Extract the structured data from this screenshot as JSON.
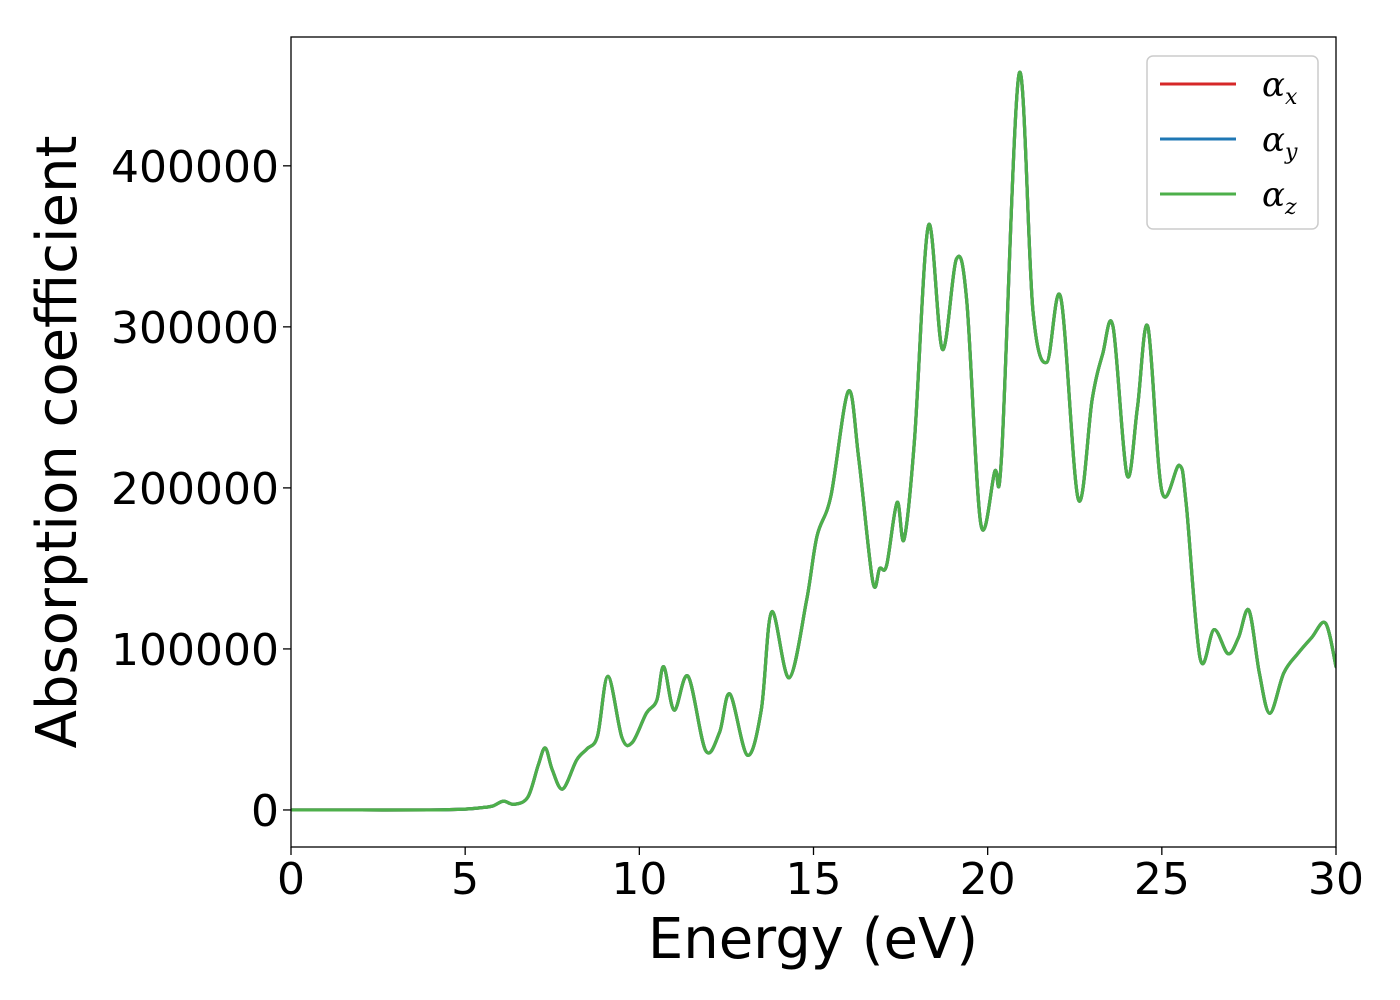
{
  "chart_data": {
    "type": "line",
    "title": "",
    "xlabel": "Energy (eV)",
    "ylabel": "Absorption coefficient",
    "xlim": [
      0,
      30
    ],
    "ylim": [
      -23000,
      480000
    ],
    "xticks": [
      0,
      5,
      10,
      15,
      20,
      25,
      30
    ],
    "yticks": [
      0,
      100000,
      200000,
      300000,
      400000
    ],
    "grid": false,
    "legend_position": "top-right",
    "series": [
      {
        "name": "α",
        "subscript": "x",
        "color": "#d62728"
      },
      {
        "name": "α",
        "subscript": "y",
        "color": "#1f77b4"
      },
      {
        "name": "α",
        "subscript": "z",
        "color": "#4daf4a"
      }
    ],
    "x": [
      0,
      2,
      4,
      5,
      5.5,
      5.8,
      6.1,
      6.4,
      6.8,
      7.1,
      7.3,
      7.5,
      7.8,
      8.2,
      8.5,
      8.8,
      9.1,
      9.5,
      9.8,
      10.2,
      10.5,
      10.7,
      11.0,
      11.4,
      11.9,
      12.3,
      12.6,
      13.1,
      13.5,
      13.8,
      14.3,
      14.8,
      15.1,
      15.5,
      16.0,
      16.3,
      16.7,
      16.9,
      17.1,
      17.4,
      17.6,
      17.9,
      18.3,
      18.7,
      19.1,
      19.4,
      19.8,
      20.2,
      20.4,
      20.9,
      21.3,
      21.7,
      22.1,
      22.6,
      23.0,
      23.3,
      23.6,
      24.0,
      24.3,
      24.6,
      25.0,
      25.5,
      25.7,
      26.1,
      26.5,
      26.9,
      27.2,
      27.5,
      27.8,
      28.1,
      28.5,
      28.9,
      29.3,
      29.7,
      30.0
    ],
    "values": [
      0,
      0,
      0,
      500,
      1500,
      2500,
      5500,
      3500,
      8000,
      28000,
      38500,
      25000,
      13000,
      31000,
      38000,
      46000,
      83000,
      45000,
      42000,
      60000,
      68000,
      89000,
      62000,
      83000,
      37000,
      48000,
      72000,
      34000,
      62000,
      123000,
      82000,
      130000,
      170000,
      195000,
      260000,
      218000,
      142000,
      150000,
      152000,
      191000,
      168000,
      230000,
      363000,
      286000,
      342000,
      316000,
      178000,
      210000,
      220000,
      457000,
      310000,
      278000,
      318000,
      193000,
      255000,
      283000,
      300000,
      208000,
      250000,
      300000,
      198000,
      214000,
      190000,
      94000,
      112000,
      97000,
      107000,
      124000,
      85000,
      60000,
      85000,
      97000,
      107000,
      116000,
      89000
    ]
  }
}
